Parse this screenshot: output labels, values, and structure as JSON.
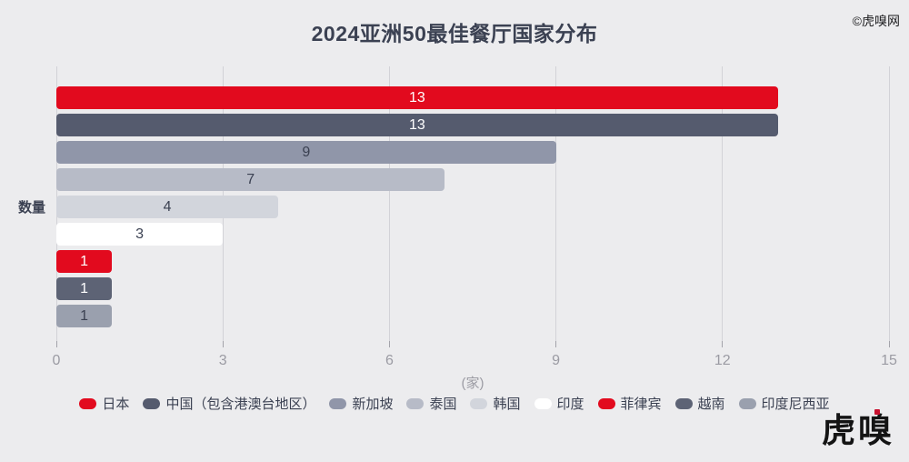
{
  "title": "2024亚洲50最佳餐厅国家分布",
  "watermark": "©虎嗅网",
  "logo": "虎嗅",
  "colors": {
    "background": "#ececee",
    "title_text": "#3b4152",
    "axis_text": "#9b9ba3",
    "gridline": "#d2d2d7",
    "accent_red": "#e20a1e",
    "logo_accent": "#c8102e"
  },
  "axis": {
    "y_label": "数量",
    "x_unit": "(家)",
    "x_ticks": [
      0,
      3,
      6,
      9,
      12,
      15
    ],
    "x_max": 15
  },
  "chart_data": {
    "type": "bar",
    "orientation": "horizontal",
    "title": "2024亚洲50最佳餐厅国家分布",
    "ylabel": "数量",
    "xlabel": "(家)",
    "xlim": [
      0,
      15
    ],
    "x_ticks": [
      0,
      3,
      6,
      9,
      12,
      15
    ],
    "grid": true,
    "legend_position": "bottom",
    "categories": [
      "日本",
      "中国（包含港澳台地区）",
      "新加坡",
      "泰国",
      "韩国",
      "印度",
      "菲律宾",
      "越南",
      "印度尼西亚"
    ],
    "values": [
      13,
      13,
      9,
      7,
      4,
      3,
      1,
      1,
      1
    ],
    "bar_colors": [
      "#e20a1e",
      "#555b6e",
      "#9096a9",
      "#b7bbc7",
      "#d2d5dc",
      "#ffffff",
      "#e20a1e",
      "#5d6375",
      "#9aa0ae"
    ],
    "value_label_colors": [
      "#ffffff",
      "#ffffff",
      "#3b4152",
      "#3b4152",
      "#3b4152",
      "#3b4152",
      "#ffffff",
      "#ffffff",
      "#3b4152"
    ]
  },
  "legend": {
    "items": [
      {
        "label": "日本",
        "color": "#e20a1e"
      },
      {
        "label": "中国（包含港澳台地区）",
        "color": "#555b6e"
      },
      {
        "label": "新加坡",
        "color": "#9096a9"
      },
      {
        "label": "泰国",
        "color": "#b7bbc7"
      },
      {
        "label": "韩国",
        "color": "#d2d5dc"
      },
      {
        "label": "印度",
        "color": "#ffffff"
      },
      {
        "label": "菲律宾",
        "color": "#e20a1e"
      },
      {
        "label": "越南",
        "color": "#5d6375"
      },
      {
        "label": "印度尼西亚",
        "color": "#9aa0ae"
      }
    ]
  }
}
